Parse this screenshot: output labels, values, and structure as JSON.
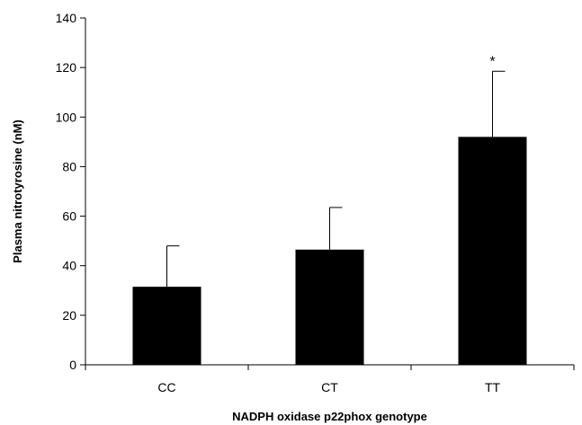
{
  "chart_data": {
    "type": "bar",
    "categories": [
      "CC",
      "CT",
      "TT"
    ],
    "values": [
      31.5,
      46.5,
      92
    ],
    "error_upper": [
      48,
      63.5,
      118.5
    ],
    "annotations": [
      "",
      "",
      "*"
    ],
    "xlabel": "NADPH oxidase p22phox genotype",
    "ylabel": "Plasma nitrotyrosine (nM)",
    "ylim": [
      0,
      140
    ],
    "yticks": [
      0,
      20,
      40,
      60,
      80,
      100,
      120,
      140
    ],
    "grid": false,
    "bar_color": "#000000"
  }
}
